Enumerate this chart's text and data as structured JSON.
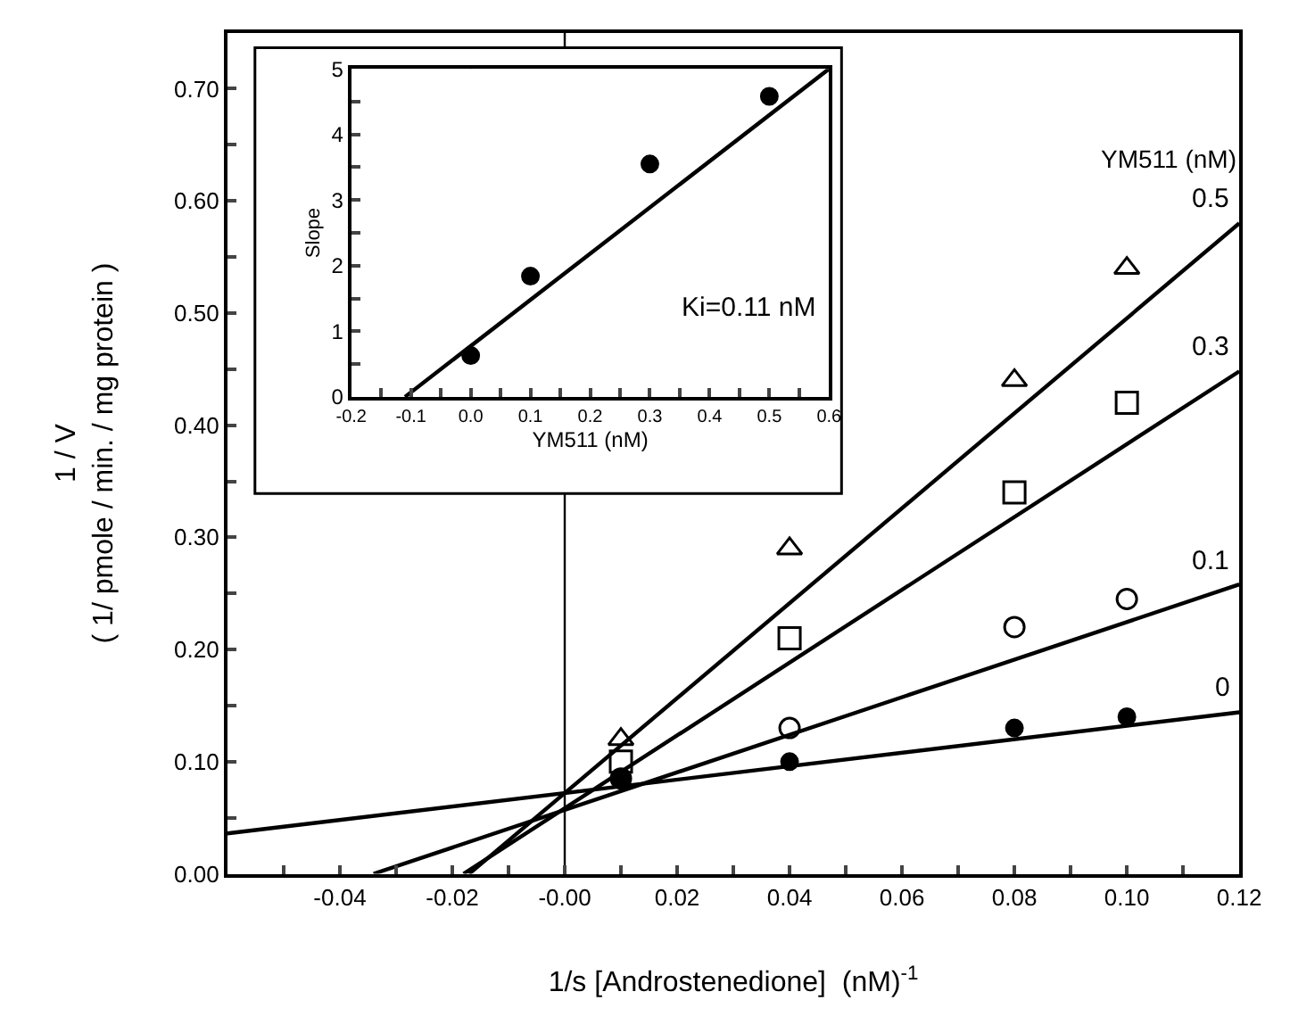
{
  "chart_data": [
    {
      "type": "scatter",
      "xlabel": "1/s [Androstenedione]  (nM)$^{-1}$",
      "ylabel": "1 / V\n( 1/ pmole / min. / mg protein )",
      "legend_title": "YM511 (nM)",
      "grid": false,
      "xlim": [
        -0.06,
        0.12
      ],
      "ylim": [
        0,
        0.75
      ],
      "xticks": [
        {
          "value": -0.05,
          "label": null
        },
        {
          "value": -0.04,
          "label": "-0.04"
        },
        {
          "value": -0.03,
          "label": null
        },
        {
          "value": -0.02,
          "label": "-0.02"
        },
        {
          "value": -0.01,
          "label": null
        },
        {
          "value": 0,
          "label": "-0.00"
        },
        {
          "value": 0.01,
          "label": null
        },
        {
          "value": 0.02,
          "label": "0.02"
        },
        {
          "value": 0.03,
          "label": null
        },
        {
          "value": 0.04,
          "label": "0.04"
        },
        {
          "value": 0.05,
          "label": null
        },
        {
          "value": 0.06,
          "label": "0.06"
        },
        {
          "value": 0.07,
          "label": null
        },
        {
          "value": 0.08,
          "label": "0.08"
        },
        {
          "value": 0.09,
          "label": null
        },
        {
          "value": 0.1,
          "label": "0.10"
        },
        {
          "value": 0.11,
          "label": null
        },
        {
          "value": 0.12,
          "label": "0.12"
        }
      ],
      "yticks": [
        {
          "value": 0,
          "label": "0.00"
        },
        {
          "value": 0.05,
          "label": null
        },
        {
          "value": 0.1,
          "label": "0.10"
        },
        {
          "value": 0.15,
          "label": null
        },
        {
          "value": 0.2,
          "label": "0.20"
        },
        {
          "value": 0.25,
          "label": null
        },
        {
          "value": 0.3,
          "label": "0.30"
        },
        {
          "value": 0.35,
          "label": null
        },
        {
          "value": 0.4,
          "label": "0.40"
        },
        {
          "value": 0.45,
          "label": null
        },
        {
          "value": 0.5,
          "label": "0.50"
        },
        {
          "value": 0.55,
          "label": null
        },
        {
          "value": 0.6,
          "label": "0.60"
        },
        {
          "value": 0.65,
          "label": null
        },
        {
          "value": 0.7,
          "label": "0.70"
        }
      ],
      "ref_lines": [
        {
          "axis": "x",
          "value": 0,
          "color": "#000000"
        }
      ],
      "series": [
        {
          "marker": "circle",
          "color": "#000000",
          "x": [
            0.01,
            0.04,
            0.08,
            0.1
          ],
          "values": [
            0.085,
            0.1,
            0.13,
            0.14
          ]
        },
        {
          "marker": "circle-open",
          "color": "#000000",
          "x": [
            0.01,
            0.04,
            0.08,
            0.1
          ],
          "values": [
            0.085,
            0.13,
            0.22,
            0.245
          ]
        },
        {
          "marker": "square-open",
          "color": "#000000",
          "x": [
            0.01,
            0.04,
            0.08,
            0.1
          ],
          "values": [
            0.1,
            0.21,
            0.34,
            0.42
          ]
        },
        {
          "marker": "triangle-open",
          "color": "#000000",
          "x": [
            0.01,
            0.04,
            0.08,
            0.1
          ],
          "values": [
            0.12,
            0.29,
            0.44,
            0.54
          ]
        },
        {
          "type": "line",
          "name": "0",
          "color": "#000000",
          "x": [
            -0.06,
            0.12
          ],
          "values": [
            0.036,
            0.144
          ]
        },
        {
          "type": "line",
          "name": "0.1",
          "color": "#000000",
          "x": [
            -0.034,
            0.12
          ],
          "values": [
            0,
            0.258
          ]
        },
        {
          "type": "line",
          "name": "0.3",
          "color": "#000000",
          "x": [
            -0.018,
            0.12
          ],
          "values": [
            0,
            0.448
          ]
        },
        {
          "type": "line",
          "name": "0.5",
          "color": "#000000",
          "x": [
            -0.017,
            0.12
          ],
          "values": [
            0,
            0.58
          ]
        }
      ]
    },
    {
      "type": "scatter",
      "xlabel": "YM511 (nM)",
      "ylabel": "Slope",
      "grid": false,
      "annotations": [
        "Ki=0.11 nM"
      ],
      "xlim": [
        -0.2,
        0.6
      ],
      "ylim": [
        0,
        5
      ],
      "xticks": [
        {
          "value": -0.2,
          "label": "-0.2"
        },
        {
          "value": -0.15,
          "label": null
        },
        {
          "value": -0.1,
          "label": "-0.1"
        },
        {
          "value": -0.05,
          "label": null
        },
        {
          "value": 0,
          "label": "0.0"
        },
        {
          "value": 0.05,
          "label": null
        },
        {
          "value": 0.1,
          "label": "0.1"
        },
        {
          "value": 0.15,
          "label": null
        },
        {
          "value": 0.2,
          "label": "0.2"
        },
        {
          "value": 0.25,
          "label": null
        },
        {
          "value": 0.3,
          "label": "0.3"
        },
        {
          "value": 0.35,
          "label": null
        },
        {
          "value": 0.4,
          "label": "0.4"
        },
        {
          "value": 0.45,
          "label": null
        },
        {
          "value": 0.5,
          "label": "0.5"
        },
        {
          "value": 0.55,
          "label": null
        },
        {
          "value": 0.6,
          "label": "0.6"
        }
      ],
      "yticks": [
        0,
        {
          "value": 0.5,
          "label": null
        },
        1,
        {
          "value": 1.5,
          "label": null
        },
        2,
        {
          "value": 2.5,
          "label": null
        },
        3,
        {
          "value": 3.5,
          "label": null
        },
        4,
        {
          "value": 4.5,
          "label": null
        },
        5
      ],
      "ref_lines": [
        {
          "axis": "x",
          "value": 0,
          "color": "#000000"
        }
      ],
      "series": [
        {
          "marker": "circle",
          "color": "#000000",
          "x": [
            0,
            0.1,
            0.3,
            0.5
          ],
          "values": [
            0.63,
            1.84,
            3.55,
            4.58
          ]
        },
        {
          "type": "line",
          "color": "#000000",
          "x": [
            -0.11,
            0.6
          ],
          "values": [
            0,
            5.0
          ]
        }
      ]
    }
  ]
}
